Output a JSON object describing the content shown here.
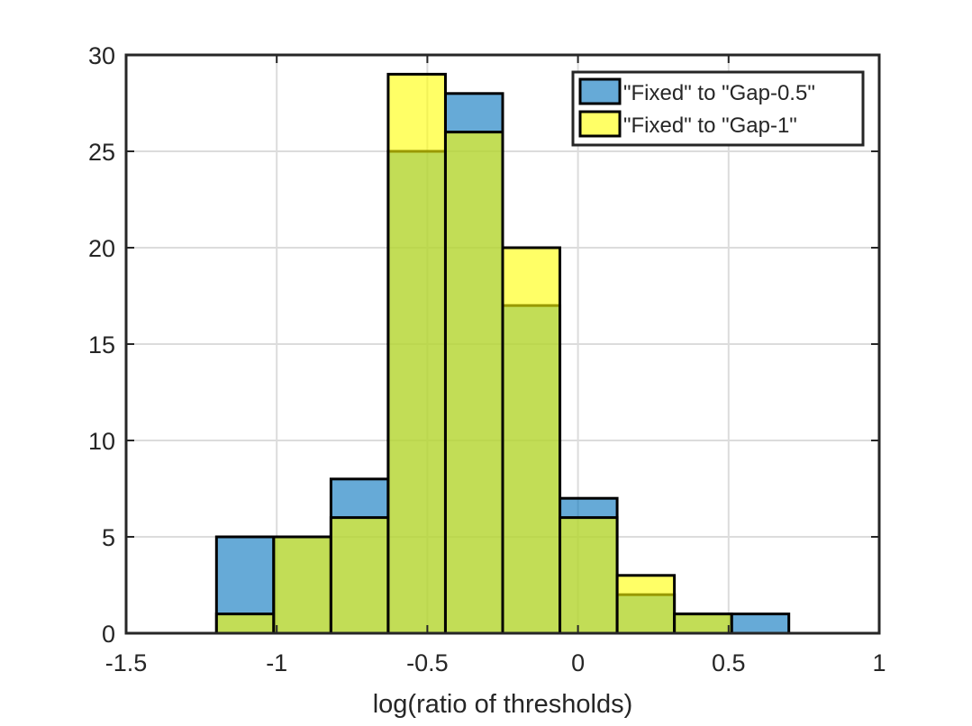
{
  "chart_data": {
    "type": "bar",
    "subtype": "overlaid-histogram",
    "title": "",
    "xlabel": "log(ratio of thresholds)",
    "ylabel": "",
    "xlim": [
      -1.5,
      1
    ],
    "ylim": [
      0,
      30
    ],
    "xticks": [
      -1.5,
      -1,
      -0.5,
      0,
      0.5,
      1
    ],
    "xtick_labels": [
      "-1.5",
      "-1",
      "-0.5",
      "0",
      "0.5",
      "1"
    ],
    "yticks": [
      0,
      5,
      10,
      15,
      20,
      25,
      30
    ],
    "ytick_labels": [
      "0",
      "5",
      "10",
      "15",
      "20",
      "25",
      "30"
    ],
    "grid": true,
    "legend_position": "top-right",
    "bin_edges": [
      -1.2,
      -1.01,
      -0.82,
      -0.63,
      -0.44,
      -0.25,
      -0.06,
      0.13,
      0.32,
      0.51,
      0.7
    ],
    "series": [
      {
        "name": "\"Fixed\" to \"Gap-0.5\"",
        "color": "#0072BD",
        "fill_opacity": 0.6,
        "values": [
          5,
          5,
          8,
          25,
          28,
          17,
          7,
          2,
          1,
          1
        ]
      },
      {
        "name": "\"Fixed\" to \"Gap-1\"",
        "color": "#FFFF00",
        "fill_opacity": 0.6,
        "values": [
          1,
          5,
          6,
          29,
          26,
          20,
          6,
          3,
          1,
          0
        ]
      }
    ]
  }
}
